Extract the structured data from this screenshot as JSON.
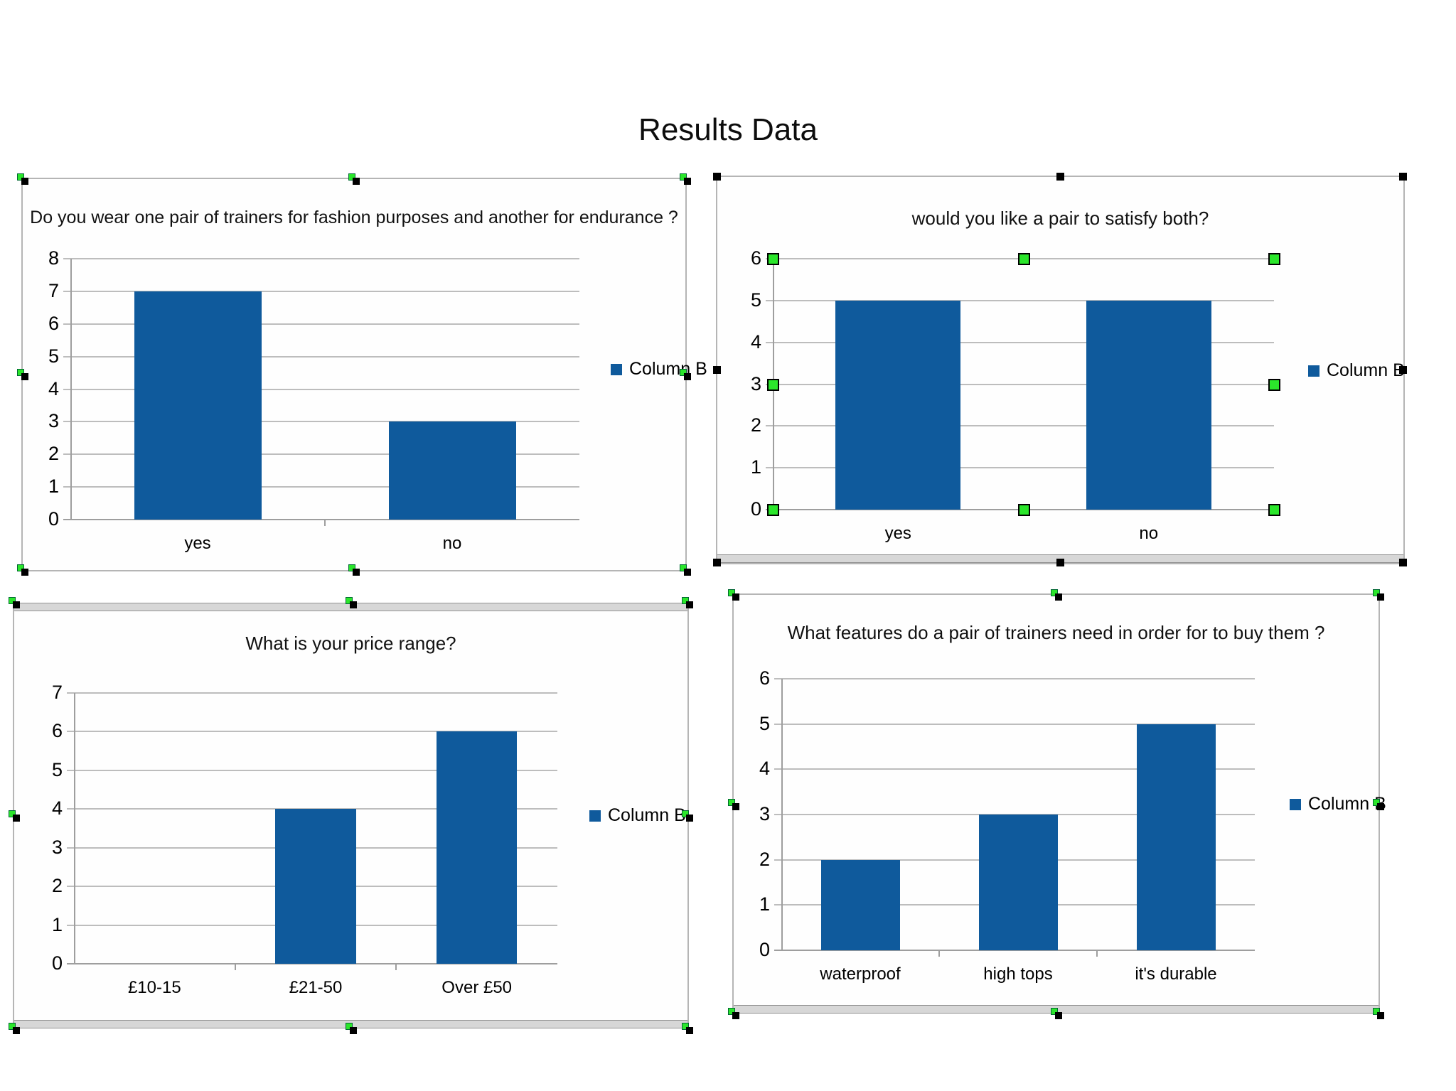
{
  "page": {
    "title": "Results Data"
  },
  "colors": {
    "bar": "#0f5a9c",
    "grid": "#bdbdbd",
    "axis": "#9e9e9e",
    "frame_gray": "#b5b5b5",
    "handle_green": "#2be62b"
  },
  "chart_data": [
    {
      "type": "bar",
      "title": "Do you wear one pair of trainers for fashion purposes and another for endurance ?",
      "categories": [
        "yes",
        "no"
      ],
      "values": [
        7,
        3
      ],
      "ylim": [
        0,
        8
      ],
      "ytick_step": 1,
      "grid": true,
      "legend": "Column B",
      "legend_position": "right"
    },
    {
      "type": "bar",
      "title": "would you like a pair to satisfy both?",
      "categories": [
        "yes",
        "no"
      ],
      "values": [
        5,
        5
      ],
      "ylim": [
        0,
        6
      ],
      "ytick_step": 1,
      "grid": true,
      "legend": "Column B",
      "legend_position": "right"
    },
    {
      "type": "bar",
      "title": "What is your price range?",
      "categories": [
        "£10-15",
        "£21-50",
        "Over £50"
      ],
      "values": [
        0,
        4,
        6
      ],
      "ylim": [
        0,
        7
      ],
      "ytick_step": 1,
      "grid": true,
      "legend": "Column B",
      "legend_position": "right"
    },
    {
      "type": "bar",
      "title": "What features do a pair of trainers need in order for to buy them ?",
      "categories": [
        "waterproof",
        "high tops",
        "it's durable"
      ],
      "values": [
        2,
        3,
        5
      ],
      "ylim": [
        0,
        6
      ],
      "ytick_step": 1,
      "grid": true,
      "legend": "Column B",
      "legend_position": "right"
    }
  ]
}
